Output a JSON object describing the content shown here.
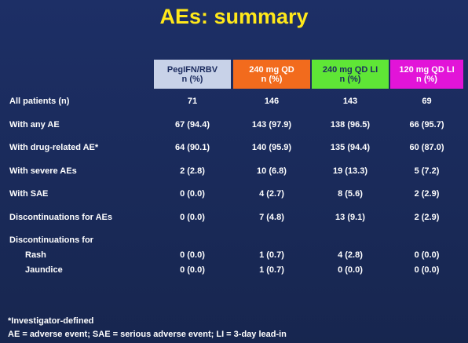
{
  "title": "AEs: summary",
  "table": {
    "header": [
      {
        "line1": "PegIFN/RBV",
        "line2": "n (%)"
      },
      {
        "line1": "240 mg QD",
        "line2": "n (%)"
      },
      {
        "line1": "240 mg QD LI",
        "line2": "n (%)"
      },
      {
        "line1": "120 mg QD LI",
        "line2": "n (%)"
      }
    ],
    "rows": [
      {
        "label": "All patients (n)",
        "values": [
          "71",
          "146",
          "143",
          "69"
        ]
      },
      {
        "label": "With any AE",
        "values": [
          "67 (94.4)",
          "143 (97.9)",
          "138 (96.5)",
          "66 (95.7)"
        ]
      },
      {
        "label": "With drug-related AE*",
        "values": [
          "64 (90.1)",
          "140 (95.9)",
          "135 (94.4)",
          "60 (87.0)"
        ]
      },
      {
        "label": "With severe AEs",
        "values": [
          "2 (2.8)",
          "10 (6.8)",
          "19 (13.3)",
          "5 (7.2)"
        ]
      },
      {
        "label": "With SAE",
        "values": [
          "0 (0.0)",
          "4 (2.7)",
          "8 (5.6)",
          "2 (2.9)"
        ]
      },
      {
        "label": "Discontinuations for AEs",
        "values": [
          "0 (0.0)",
          "7 (4.8)",
          "13 (9.1)",
          "2 (2.9)"
        ]
      },
      {
        "label": "Discontinuations for",
        "subrows": [
          {
            "label": "Rash",
            "values": [
              "0 (0.0)",
              "1 (0.7)",
              "4 (2.8)",
              "0 (0.0)"
            ]
          },
          {
            "label": "Jaundice",
            "values": [
              "0 (0.0)",
              "1 (0.7)",
              "0 (0.0)",
              "0 (0.0)"
            ]
          }
        ]
      }
    ]
  },
  "footnotes": [
    "*Investigator-defined",
    "AE = adverse event; SAE = serious adverse event; LI = 3-day lead-in"
  ]
}
